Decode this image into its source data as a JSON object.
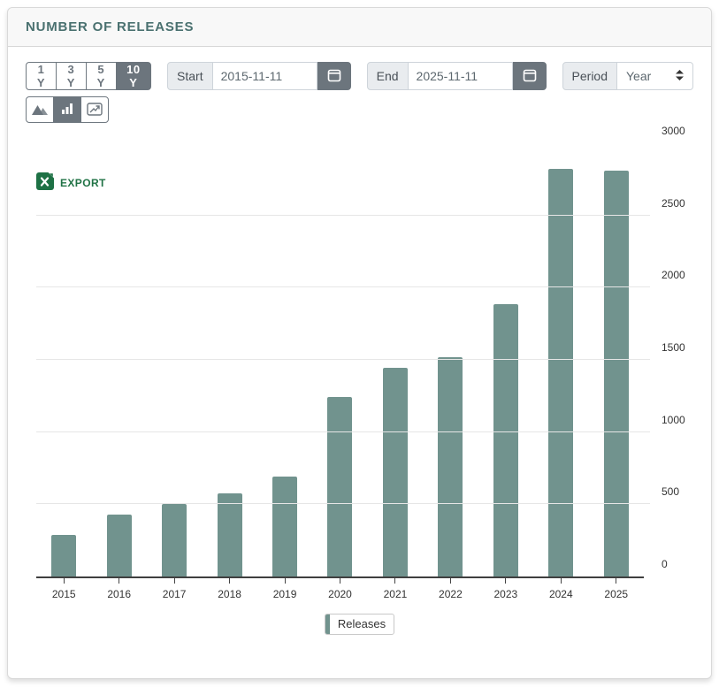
{
  "card": {
    "title": "NUMBER OF RELEASES"
  },
  "controls": {
    "range_buttons": [
      {
        "label": "1 Y",
        "selected": false
      },
      {
        "label": "3 Y",
        "selected": false
      },
      {
        "label": "5 Y",
        "selected": false
      },
      {
        "label": "10 Y",
        "selected": true
      }
    ],
    "start": {
      "label": "Start",
      "value": "2015-11-11",
      "icon": "calendar-icon"
    },
    "end": {
      "label": "End",
      "value": "2025-11-11",
      "icon": "calendar-icon"
    },
    "period": {
      "label": "Period",
      "value": "Year",
      "icon": "up-down-arrows-icon"
    },
    "chart_type_buttons": [
      {
        "name": "area",
        "icon": "area-chart-icon",
        "selected": false
      },
      {
        "name": "bar",
        "icon": "bar-chart-icon",
        "selected": true
      },
      {
        "name": "line",
        "icon": "line-chart-icon",
        "selected": false
      }
    ]
  },
  "export_button": {
    "label": "EXPORT",
    "icon": "excel-file-icon"
  },
  "chart_data": {
    "type": "bar",
    "title": "Number of Releases",
    "categories": [
      "2015",
      "2016",
      "2017",
      "2018",
      "2019",
      "2020",
      "2021",
      "2022",
      "2023",
      "2024",
      "2025"
    ],
    "series": [
      {
        "name": "Releases",
        "values": [
          290,
          430,
          500,
          575,
          690,
          1240,
          1445,
          1520,
          1885,
          2820,
          2810
        ]
      }
    ],
    "xlabel": "",
    "ylabel": "",
    "ylim": [
      0,
      3000
    ],
    "yticks": [
      0,
      500,
      1000,
      1500,
      2000,
      2500,
      3000
    ],
    "grid": true,
    "legend_position": "bottom",
    "bar_color": "#71938e"
  },
  "colors": {
    "title_teal": "#4a7170",
    "control_slate": "#6c757d",
    "export_green": "#1e7145",
    "bar_teal": "#71938e",
    "grid_gray": "#e6e6e6"
  }
}
